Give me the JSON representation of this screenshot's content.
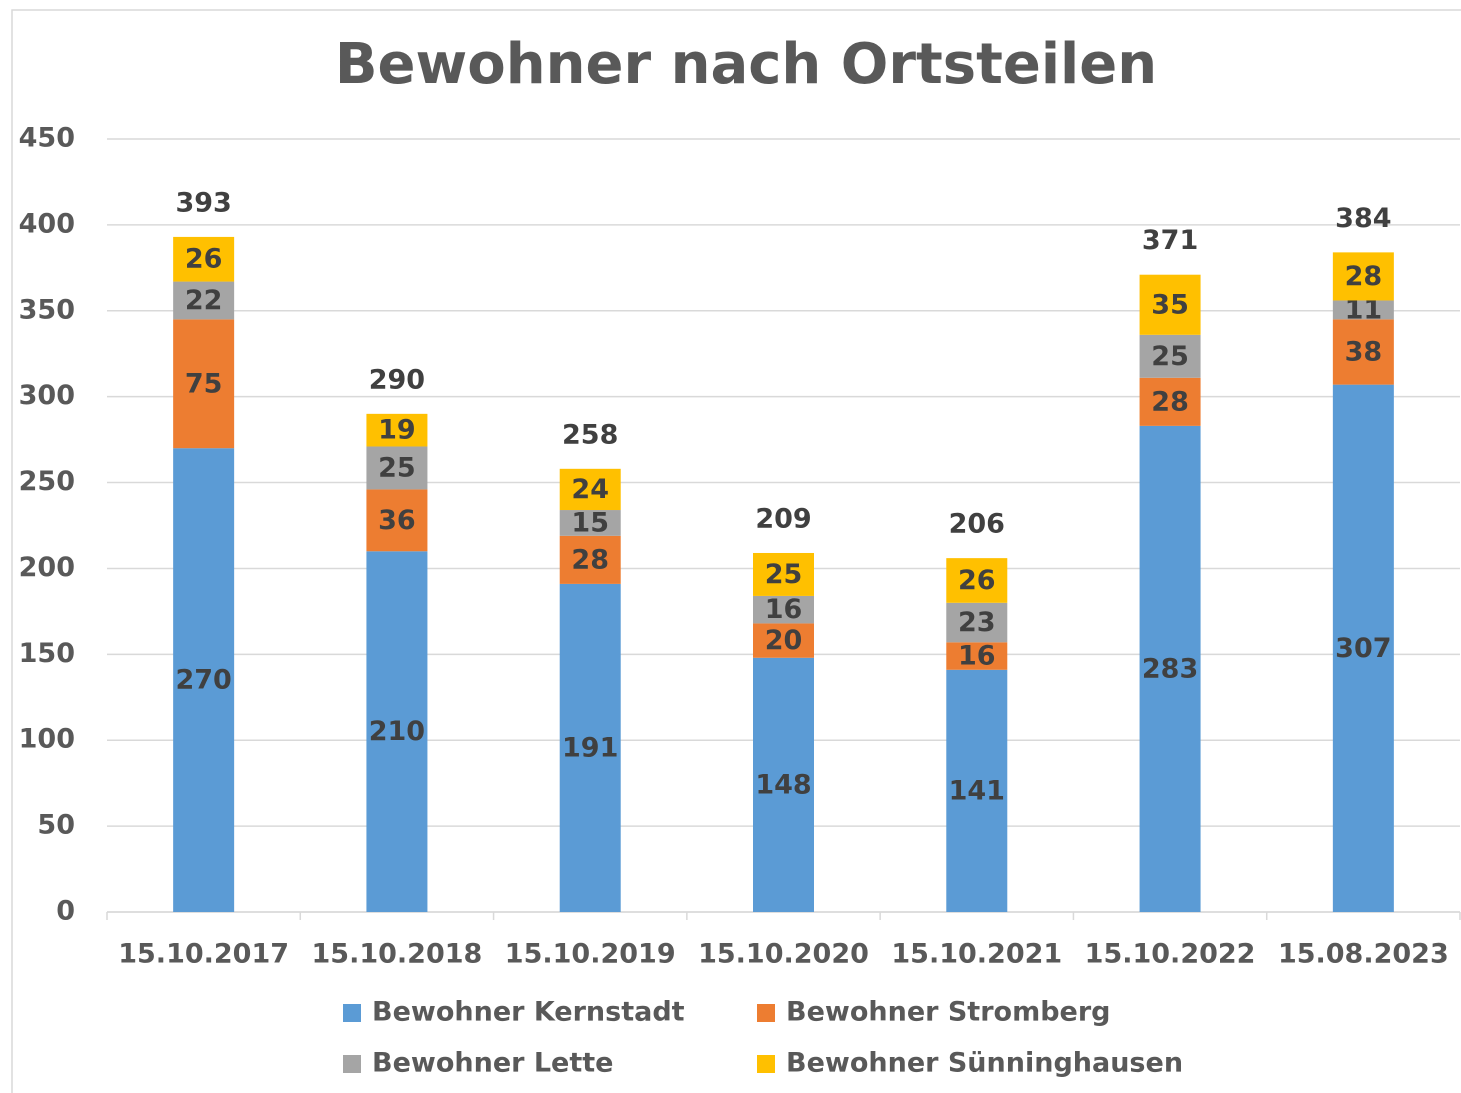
{
  "chart_data": {
    "type": "stacked_bar",
    "title": "Bewohner nach Ortsteilen",
    "categories": [
      "15.10.2017",
      "15.10.2018",
      "15.10.2019",
      "15.10.2020",
      "15.10.2021",
      "15.10.2022",
      "15.08.2023"
    ],
    "series": [
      {
        "name": "Bewohner Kernstadt",
        "color": "#5b9bd5",
        "values": [
          270,
          210,
          191,
          148,
          141,
          283,
          307
        ]
      },
      {
        "name": "Bewohner Stromberg",
        "color": "#ed7d31",
        "values": [
          75,
          36,
          28,
          20,
          16,
          28,
          38
        ]
      },
      {
        "name": "Bewohner Lette",
        "color": "#a5a5a5",
        "values": [
          22,
          25,
          15,
          16,
          23,
          25,
          11
        ]
      },
      {
        "name": "Bewohner Sünninghausen",
        "color": "#ffc000",
        "values": [
          26,
          19,
          24,
          25,
          26,
          35,
          28
        ]
      }
    ],
    "totals": [
      393,
      290,
      258,
      209,
      206,
      371,
      384
    ],
    "ylim": [
      0,
      450
    ],
    "yticks": [
      0,
      50,
      100,
      150,
      200,
      250,
      300,
      350,
      400,
      450
    ],
    "grid": true,
    "legend": "bottom"
  }
}
